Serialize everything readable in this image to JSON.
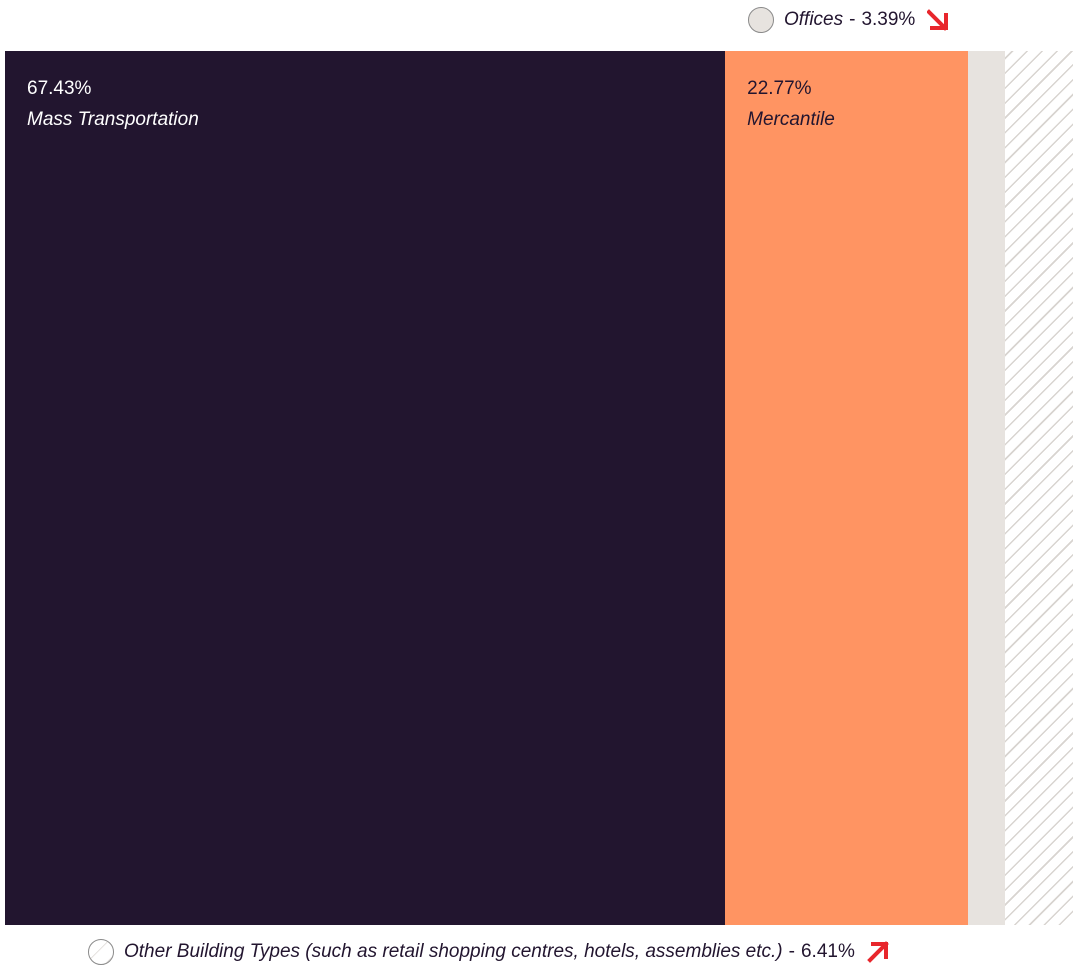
{
  "colors": {
    "mass_transportation": "#22152f",
    "mercantile": "#ff9462",
    "offices": "#e7e3df",
    "other": "#ffffff",
    "hatch": "#d8d4d0",
    "arrow": "#e8262c"
  },
  "chart_data": {
    "type": "bar",
    "orientation": "horizontal-stacked-100",
    "title": "",
    "xlabel": "",
    "ylabel": "",
    "grid": false,
    "segments": [
      {
        "name": "Mass Transportation",
        "value": 67.43,
        "label": "67.43%",
        "fill": "solid",
        "color": "#22152f",
        "text_color": "#ffffff"
      },
      {
        "name": "Mercantile",
        "value": 22.77,
        "label": "22.77%",
        "fill": "solid",
        "color": "#ff9462",
        "text_color": "#22152f"
      },
      {
        "name": "Offices",
        "value": 3.39,
        "label": "3.39%",
        "fill": "solid",
        "color": "#e7e3df"
      },
      {
        "name": "Other Building Types (such as retail shopping centres, hotels, assemblies etc.)",
        "value": 6.41,
        "label": "6.41%",
        "fill": "hatched",
        "color": "#ffffff"
      }
    ]
  },
  "callouts": {
    "offices": {
      "name": "Offices",
      "separator": "-",
      "value": "3.39%",
      "arrow": "arrow-down-right-icon"
    },
    "other": {
      "name": "Other Building Types (such as retail shopping centres, hotels, assemblies etc.)",
      "separator": "-",
      "value": "6.41%",
      "arrow": "arrow-up-right-icon"
    }
  }
}
